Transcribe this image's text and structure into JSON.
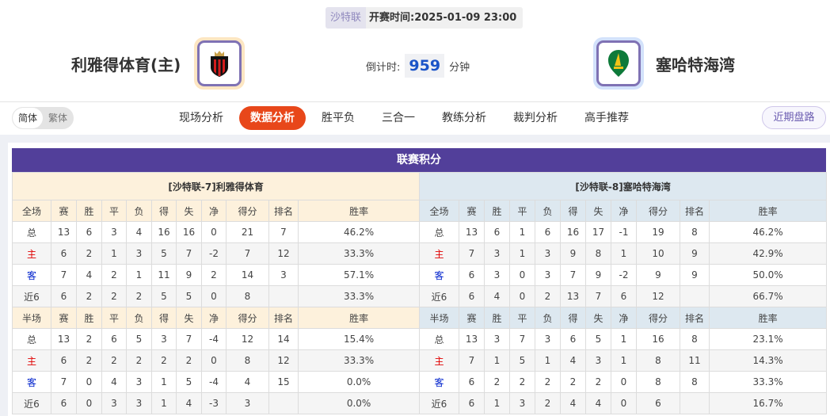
{
  "match": {
    "league": "沙特联",
    "kickoff_label": "开赛时间:",
    "kickoff": "2025-01-09 23:00",
    "home": "利雅得体育(主)",
    "away": "塞哈特海湾",
    "countdown_label": "倒计时:",
    "countdown": "959",
    "countdown_unit": "分钟"
  },
  "lang": {
    "simplified": "简体",
    "traditional": "繁体"
  },
  "tabs": [
    "现场分析",
    "数据分析",
    "胜平负",
    "三合一",
    "教练分析",
    "裁判分析",
    "高手推荐"
  ],
  "active_tab": "数据分析",
  "recent_button": "近期盘路",
  "colors": {
    "accent": "#e8471a",
    "header": "#523f9a",
    "home_label": "#e00000",
    "away_label": "#0022cc"
  },
  "standings": {
    "title": "联赛积分",
    "columns_full": [
      "全场",
      "赛",
      "胜",
      "平",
      "负",
      "得",
      "失",
      "净",
      "得分",
      "排名",
      "胜率"
    ],
    "columns_half": [
      "半场",
      "赛",
      "胜",
      "平",
      "负",
      "得",
      "失",
      "净",
      "得分",
      "排名",
      "胜率"
    ],
    "home": {
      "team": "[沙特联-7]利雅得体育",
      "full": [
        [
          "总",
          "13",
          "6",
          "3",
          "4",
          "16",
          "16",
          "0",
          "21",
          "7",
          "46.2%"
        ],
        [
          "主",
          "6",
          "2",
          "1",
          "3",
          "5",
          "7",
          "-2",
          "7",
          "12",
          "33.3%"
        ],
        [
          "客",
          "7",
          "4",
          "2",
          "1",
          "11",
          "9",
          "2",
          "14",
          "3",
          "57.1%"
        ],
        [
          "近6",
          "6",
          "2",
          "2",
          "2",
          "5",
          "5",
          "0",
          "8",
          "",
          "33.3%"
        ]
      ],
      "half": [
        [
          "总",
          "13",
          "2",
          "6",
          "5",
          "3",
          "7",
          "-4",
          "12",
          "14",
          "15.4%"
        ],
        [
          "主",
          "6",
          "2",
          "2",
          "2",
          "2",
          "2",
          "0",
          "8",
          "12",
          "33.3%"
        ],
        [
          "客",
          "7",
          "0",
          "4",
          "3",
          "1",
          "5",
          "-4",
          "4",
          "15",
          "0.0%"
        ],
        [
          "近6",
          "6",
          "0",
          "3",
          "3",
          "1",
          "4",
          "-3",
          "3",
          "",
          "0.0%"
        ]
      ]
    },
    "away": {
      "team": "[沙特联-8]塞哈特海湾",
      "full": [
        [
          "总",
          "13",
          "6",
          "1",
          "6",
          "16",
          "17",
          "-1",
          "19",
          "8",
          "46.2%"
        ],
        [
          "主",
          "7",
          "3",
          "1",
          "3",
          "9",
          "8",
          "1",
          "10",
          "9",
          "42.9%"
        ],
        [
          "客",
          "6",
          "3",
          "0",
          "3",
          "7",
          "9",
          "-2",
          "9",
          "9",
          "50.0%"
        ],
        [
          "近6",
          "6",
          "4",
          "0",
          "2",
          "13",
          "7",
          "6",
          "12",
          "",
          "66.7%"
        ]
      ],
      "half": [
        [
          "总",
          "13",
          "3",
          "7",
          "3",
          "6",
          "5",
          "1",
          "16",
          "8",
          "23.1%"
        ],
        [
          "主",
          "7",
          "1",
          "5",
          "1",
          "4",
          "3",
          "1",
          "8",
          "11",
          "14.3%"
        ],
        [
          "客",
          "6",
          "2",
          "2",
          "2",
          "2",
          "2",
          "0",
          "8",
          "8",
          "33.3%"
        ],
        [
          "近6",
          "6",
          "1",
          "3",
          "2",
          "4",
          "4",
          "0",
          "6",
          "",
          "16.7%"
        ]
      ]
    }
  }
}
